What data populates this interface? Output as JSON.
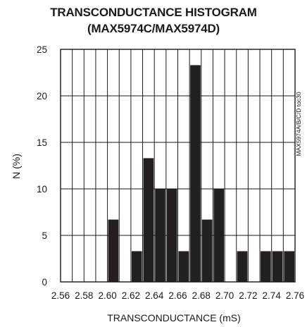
{
  "title_line1": "TRANSCONDUCTANCE HISTOGRAM",
  "title_line2": "(MAX5974C/MAX5974D)",
  "side_note": "MAX5974A/B/C/D toc30",
  "chart_data": {
    "type": "bar",
    "title": "TRANSCONDUCTANCE HISTOGRAM (MAX5974C/MAX5974D)",
    "xlabel": "TRANSCONDUCTANCE (mS)",
    "ylabel": "N (%)",
    "xlim": [
      2.56,
      2.76
    ],
    "ylim": [
      0,
      25
    ],
    "grid": true,
    "x_ticks": [
      "2.56",
      "2.58",
      "2.60",
      "2.62",
      "2.64",
      "2.66",
      "2.68",
      "2.70",
      "2.72",
      "2.74",
      "2.76"
    ],
    "y_ticks": [
      "0",
      "5",
      "10",
      "15",
      "20",
      "25"
    ],
    "bin_width": 0.01,
    "bin_starts": [
      2.56,
      2.57,
      2.58,
      2.59,
      2.6,
      2.61,
      2.62,
      2.63,
      2.64,
      2.65,
      2.66,
      2.67,
      2.68,
      2.69,
      2.7,
      2.71,
      2.72,
      2.73,
      2.74,
      2.75
    ],
    "values": [
      0,
      0,
      0,
      0,
      6.7,
      0,
      3.3,
      13.3,
      10,
      10,
      3.3,
      23.3,
      6.7,
      10,
      0,
      3.3,
      0,
      3.3,
      3.3,
      3.3
    ]
  }
}
